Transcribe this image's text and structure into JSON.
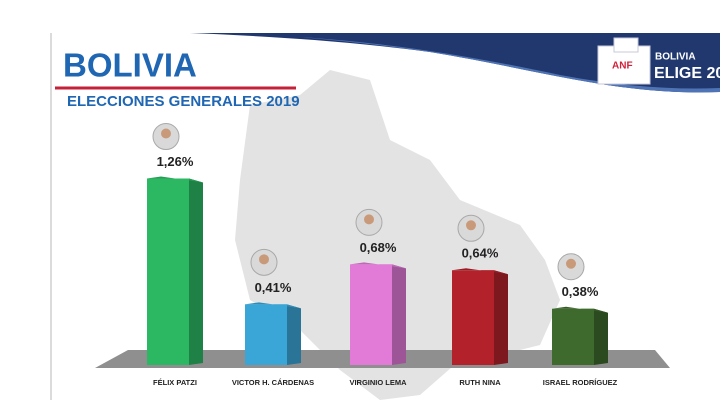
{
  "logo": {
    "brand": "ANF",
    "line1": "BOLIVIA",
    "line2": "ELIGE 20"
  },
  "chart_data": {
    "type": "bar",
    "title": "BOLIVIA",
    "subtitle": "ELECCIONES GENERALES 2019",
    "categories": [
      "FÉLIX PATZI",
      "VICTOR H. CÁRDENAS",
      "VIRGINIO LEMA",
      "RUTH NINA",
      "ISRAEL RODRÍGUEZ"
    ],
    "values": [
      1.26,
      0.41,
      0.68,
      0.64,
      0.38
    ],
    "value_labels": [
      "1,26%",
      "0,41%",
      "0,68%",
      "0,64%",
      "0,38%"
    ],
    "colors": [
      "#2cb862",
      "#3aa6d8",
      "#e27ad8",
      "#b3222b",
      "#3f6a2d"
    ]
  }
}
